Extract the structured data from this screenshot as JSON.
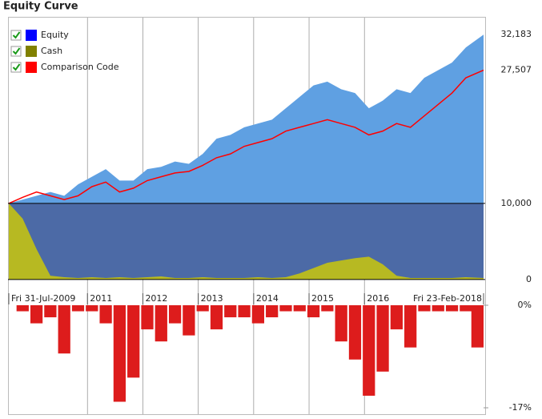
{
  "title": "Equity Curve",
  "chart_data": [
    {
      "type": "area",
      "x": [
        2009.58,
        2009.83,
        2010.08,
        2010.33,
        2010.58,
        2010.83,
        2011.08,
        2011.33,
        2011.58,
        2011.83,
        2012.08,
        2012.33,
        2012.58,
        2012.83,
        2013.08,
        2013.33,
        2013.58,
        2013.83,
        2014.08,
        2014.33,
        2014.58,
        2014.83,
        2015.08,
        2015.33,
        2015.58,
        2015.83,
        2016.08,
        2016.33,
        2016.58,
        2016.83,
        2017.08,
        2017.33,
        2017.58,
        2017.83,
        2018.15
      ],
      "series": [
        {
          "name": "Equity",
          "color": "#0000ff",
          "style": "area",
          "fill": "#5fa0e2",
          "fill_below": "#4c6aa6",
          "values": [
            10000,
            10500,
            11000,
            11500,
            11000,
            12500,
            13500,
            14500,
            13000,
            13000,
            14500,
            14800,
            15500,
            15200,
            16500,
            18500,
            19000,
            20000,
            20500,
            21000,
            22500,
            24000,
            25500,
            26000,
            25000,
            24500,
            22500,
            23500,
            25000,
            24500,
            26500,
            27500,
            28500,
            30500,
            32183
          ]
        },
        {
          "name": "Cash",
          "color": "#808000",
          "style": "area",
          "fill": "#b7b922",
          "values": [
            10000,
            8000,
            4000,
            500,
            300,
            200,
            300,
            200,
            300,
            200,
            300,
            400,
            200,
            200,
            300,
            200,
            200,
            200,
            300,
            200,
            300,
            800,
            1500,
            2200,
            2500,
            2800,
            3000,
            2000,
            500,
            200,
            200,
            200,
            200,
            300,
            200
          ]
        },
        {
          "name": "Comparison Code",
          "color": "#ff0000",
          "style": "line",
          "values": [
            10000,
            10800,
            11500,
            11000,
            10500,
            11000,
            12200,
            12800,
            11500,
            12000,
            13000,
            13500,
            14000,
            14200,
            15000,
            16000,
            16500,
            17500,
            18000,
            18500,
            19500,
            20000,
            20500,
            21000,
            20500,
            20000,
            19000,
            19500,
            20500,
            20000,
            21500,
            23000,
            24500,
            26500,
            27507
          ]
        }
      ],
      "xlim": [
        2009.58,
        2018.15
      ],
      "xticks": [
        {
          "value": 2009.58,
          "label": "Fri 31-Jul-2009"
        },
        2011,
        2012,
        2013,
        2014,
        2015,
        2016,
        {
          "value": 2018.15,
          "label": "Fri 23-Feb-2018"
        }
      ],
      "ylim": [
        -1700,
        34100
      ],
      "yticks": [
        0,
        {
          "value": 10000,
          "label": "10,000"
        },
        {
          "value": 27507,
          "label": "27,507"
        },
        {
          "value": 32183,
          "label": "32,183"
        }
      ],
      "grid": true
    },
    {
      "type": "bar",
      "color": "#dd1c1c",
      "x": [
        2009.58,
        2009.83,
        2010.08,
        2010.33,
        2010.58,
        2010.83,
        2011.08,
        2011.33,
        2011.58,
        2011.83,
        2012.08,
        2012.33,
        2012.58,
        2012.83,
        2013.08,
        2013.33,
        2013.58,
        2013.83,
        2014.08,
        2014.33,
        2014.58,
        2014.83,
        2015.08,
        2015.33,
        2015.58,
        2015.83,
        2016.08,
        2016.33,
        2016.58,
        2016.83,
        2017.08,
        2017.33,
        2017.58,
        2017.83,
        2018.15
      ],
      "values": [
        0,
        -1,
        -3,
        -2,
        -8,
        -1,
        -1,
        -3,
        -16,
        -12,
        -4,
        -6,
        -3,
        -5,
        -1,
        -4,
        -2,
        -2,
        -3,
        -2,
        -1,
        -1,
        -2,
        -1,
        -6,
        -9,
        -15,
        -11,
        -4,
        -7,
        -1,
        -1,
        -1,
        -1,
        -7
      ],
      "xlim": [
        2009.58,
        2018.15
      ],
      "ylim": [
        -17,
        0
      ],
      "yticks": [
        {
          "value": 0,
          "label": "0%"
        },
        {
          "value": -17,
          "label": "-17%"
        }
      ]
    }
  ]
}
